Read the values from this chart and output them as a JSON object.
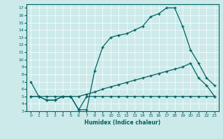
{
  "xlabel": "Humidex (Indice chaleur)",
  "bg_color": "#cceaea",
  "line_color": "#006060",
  "xlim": [
    -0.5,
    23.5
  ],
  "ylim": [
    3,
    17.5
  ],
  "xticks": [
    0,
    1,
    2,
    3,
    4,
    5,
    6,
    7,
    8,
    9,
    10,
    11,
    12,
    13,
    14,
    15,
    16,
    17,
    18,
    19,
    20,
    21,
    22,
    23
  ],
  "yticks": [
    3,
    4,
    5,
    6,
    7,
    8,
    9,
    10,
    11,
    12,
    13,
    14,
    15,
    16,
    17
  ],
  "line1_x": [
    0,
    1,
    2,
    3,
    4,
    5,
    6,
    7,
    8,
    9,
    10,
    11,
    12,
    13,
    14,
    15,
    16,
    17,
    18,
    19,
    20,
    21,
    22,
    23
  ],
  "line1_y": [
    7.0,
    5.0,
    4.5,
    4.5,
    5.0,
    5.0,
    3.2,
    3.2,
    8.5,
    11.7,
    13.0,
    13.3,
    13.5,
    14.0,
    14.5,
    15.8,
    16.2,
    17.0,
    17.0,
    14.5,
    11.3,
    9.5,
    7.5,
    6.5
  ],
  "line2_x": [
    0,
    1,
    2,
    3,
    4,
    5,
    6,
    7,
    8,
    9,
    10,
    11,
    12,
    13,
    14,
    15,
    16,
    17,
    18,
    19,
    20,
    21,
    22,
    23
  ],
  "line2_y": [
    5.0,
    5.0,
    5.0,
    5.0,
    5.0,
    5.0,
    5.0,
    5.3,
    5.6,
    6.0,
    6.3,
    6.6,
    6.9,
    7.2,
    7.5,
    7.8,
    8.1,
    8.4,
    8.7,
    9.0,
    9.5,
    7.5,
    6.5,
    5.0
  ],
  "line3_x": [
    0,
    1,
    2,
    3,
    4,
    5,
    6,
    7,
    8,
    9,
    10,
    11,
    12,
    13,
    14,
    15,
    16,
    17,
    18,
    19,
    20,
    21,
    22,
    23
  ],
  "line3_y": [
    5.0,
    5.0,
    4.5,
    4.5,
    5.0,
    5.0,
    3.2,
    5.0,
    5.0,
    5.0,
    5.0,
    5.0,
    5.0,
    5.0,
    5.0,
    5.0,
    5.0,
    5.0,
    5.0,
    5.0,
    5.0,
    5.0,
    5.0,
    5.0
  ]
}
